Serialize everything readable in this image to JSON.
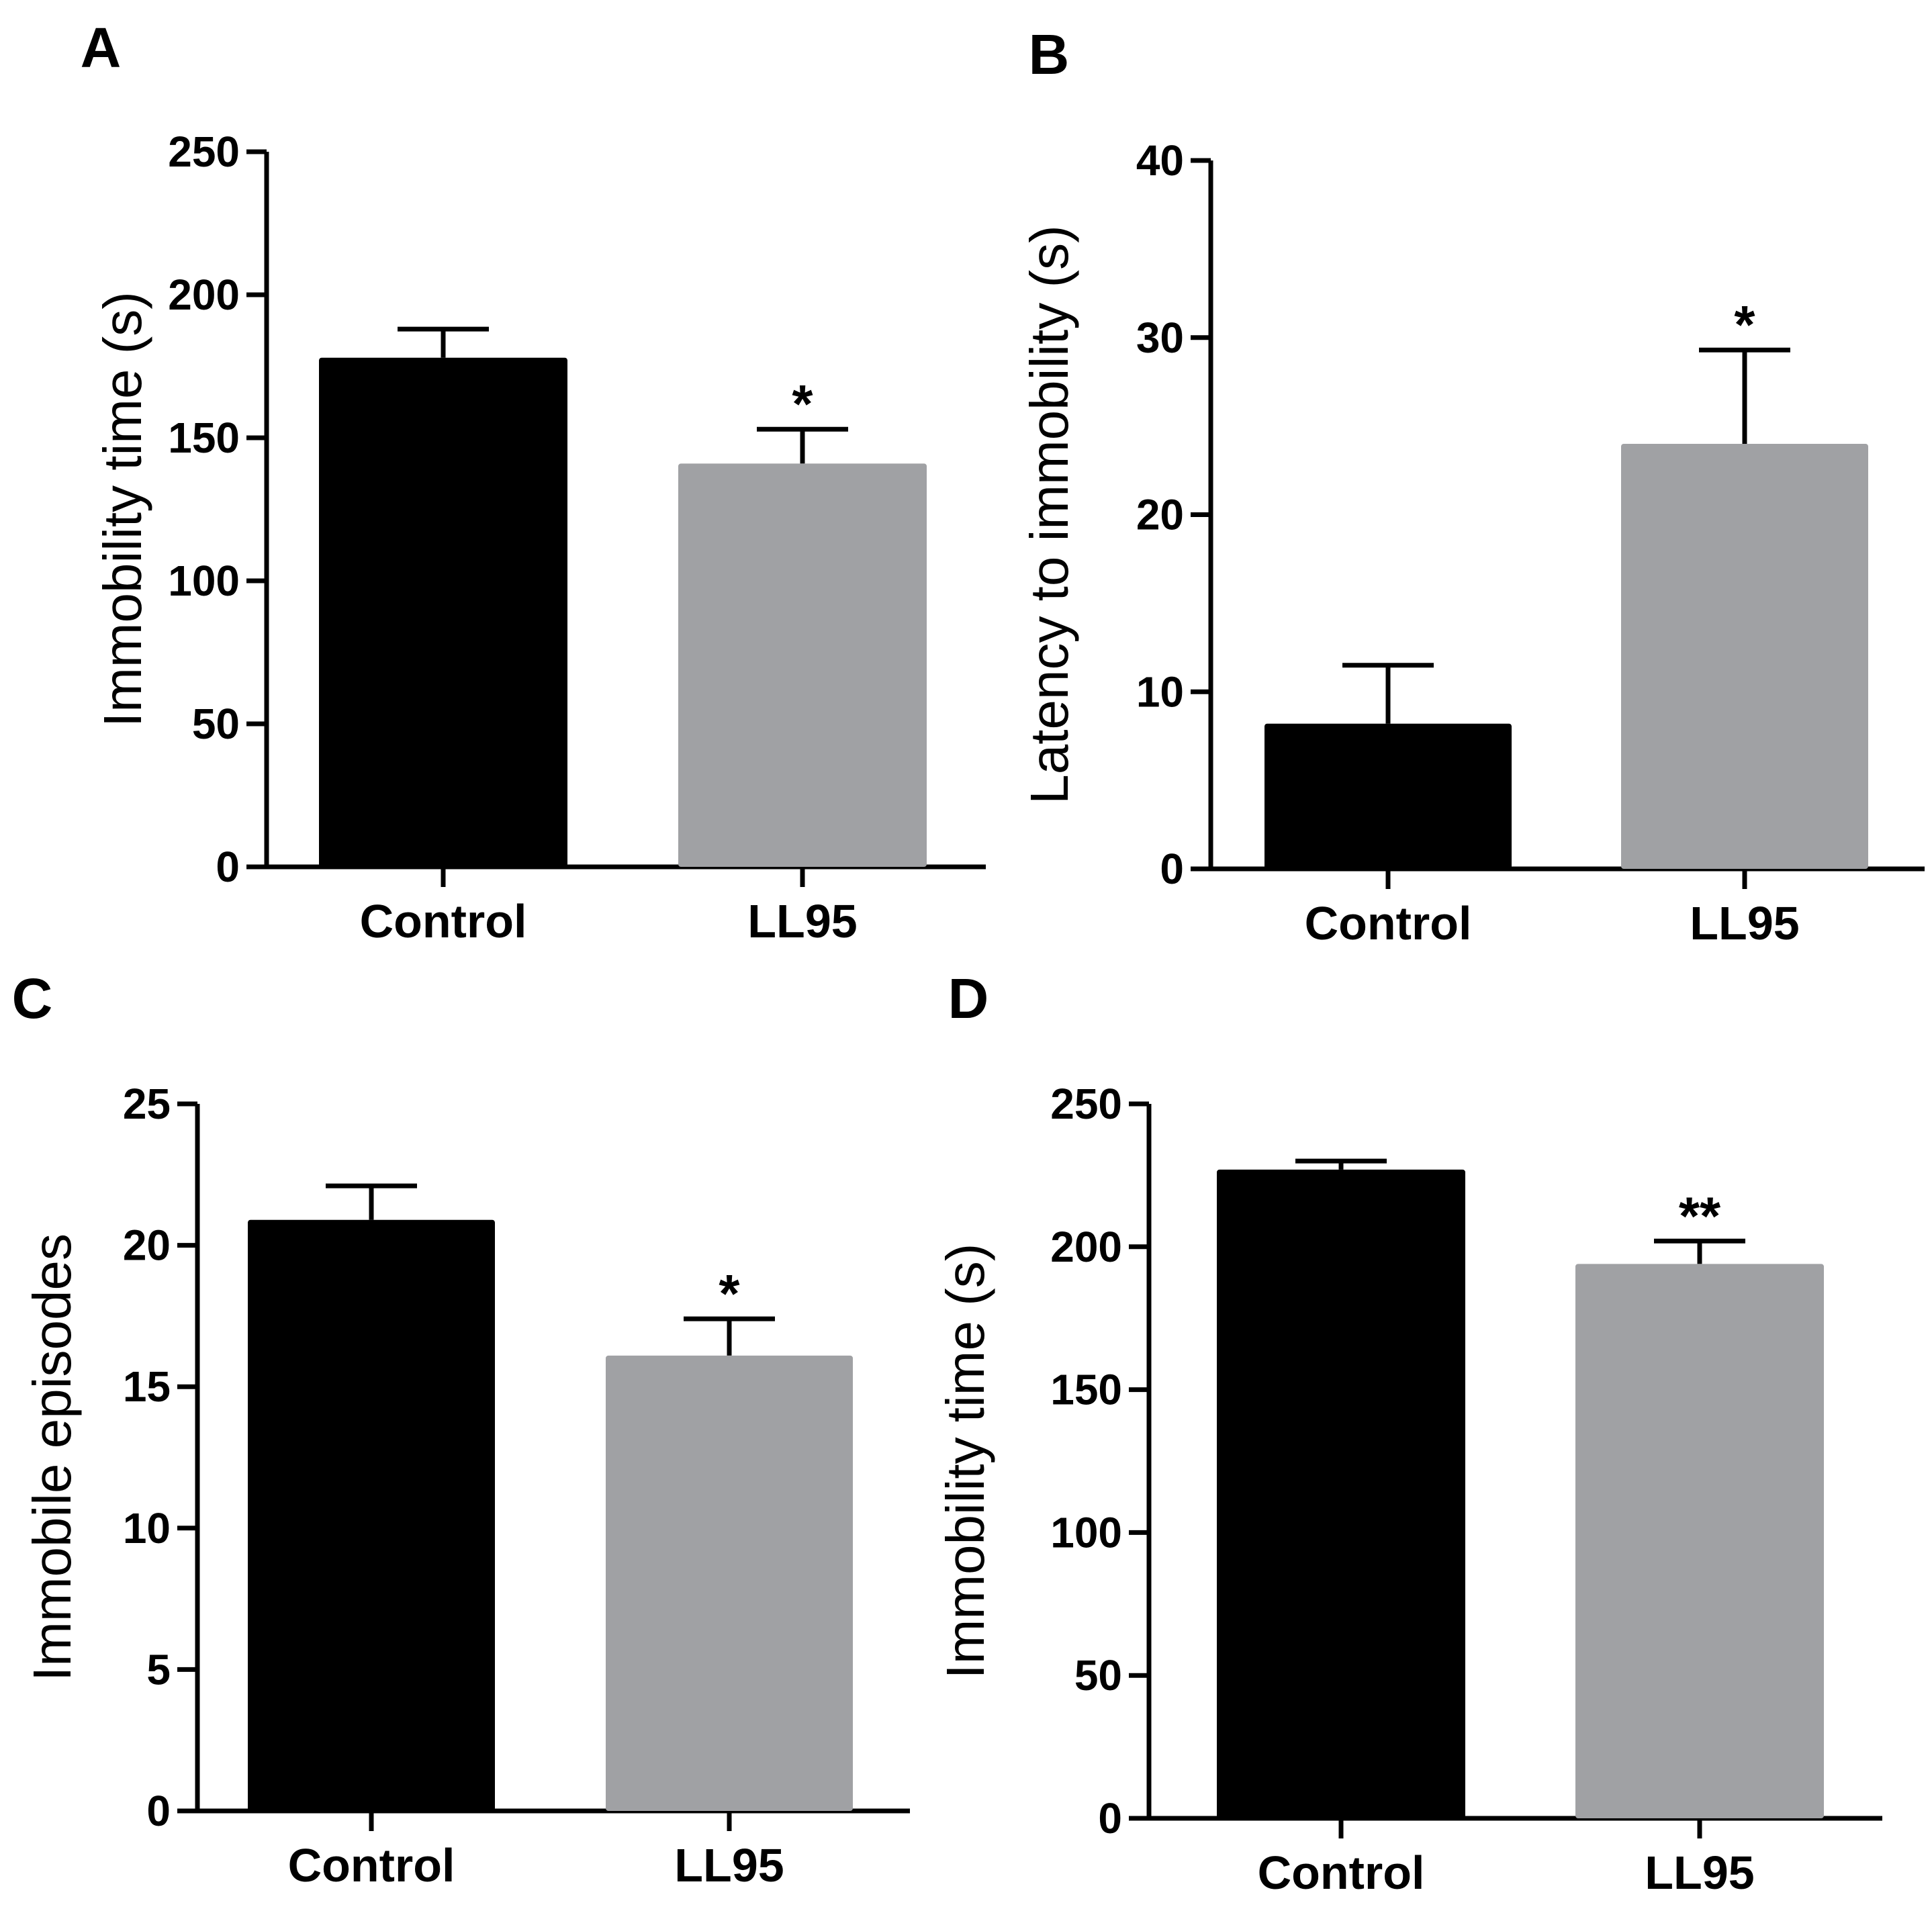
{
  "chart_data": [
    {
      "panel": "A",
      "type": "bar",
      "categories": [
        "Control",
        "LL95"
      ],
      "values": [
        178,
        141
      ],
      "errors": [
        10,
        12
      ],
      "significance": [
        "",
        "*"
      ],
      "colors": [
        "#000000",
        "#a0a1a4"
      ],
      "ylabel": "Immobility time (s)",
      "xlabel": "",
      "ylim": [
        0,
        250
      ],
      "yticks": [
        0,
        50,
        100,
        150,
        200,
        250
      ]
    },
    {
      "panel": "B",
      "type": "bar",
      "categories": [
        "Control",
        "LL95"
      ],
      "values": [
        8.2,
        24
      ],
      "errors": [
        3.3,
        5.3
      ],
      "significance": [
        "",
        "*"
      ],
      "colors": [
        "#000000",
        "#a0a1a4"
      ],
      "ylabel": "Latency to immobility (s)",
      "xlabel": "",
      "ylim": [
        0,
        40
      ],
      "yticks": [
        0,
        10,
        20,
        30,
        40
      ]
    },
    {
      "panel": "C",
      "type": "bar",
      "categories": [
        "Control",
        "LL95"
      ],
      "values": [
        20.9,
        16.1
      ],
      "errors": [
        1.2,
        1.3
      ],
      "significance": [
        "",
        "*"
      ],
      "colors": [
        "#000000",
        "#a0a1a4"
      ],
      "ylabel": "Immobile episodes",
      "xlabel": "",
      "ylim": [
        0,
        25
      ],
      "yticks": [
        0,
        5,
        10,
        15,
        20,
        25
      ]
    },
    {
      "panel": "D",
      "type": "bar",
      "categories": [
        "Control",
        "LL95"
      ],
      "values": [
        227,
        194
      ],
      "errors": [
        3,
        8
      ],
      "significance": [
        "",
        "**"
      ],
      "colors": [
        "#000000",
        "#a0a1a4"
      ],
      "ylabel": "Immobility time (s)",
      "xlabel": "",
      "ylim": [
        0,
        250
      ],
      "yticks": [
        0,
        50,
        100,
        150,
        200,
        250
      ]
    }
  ]
}
